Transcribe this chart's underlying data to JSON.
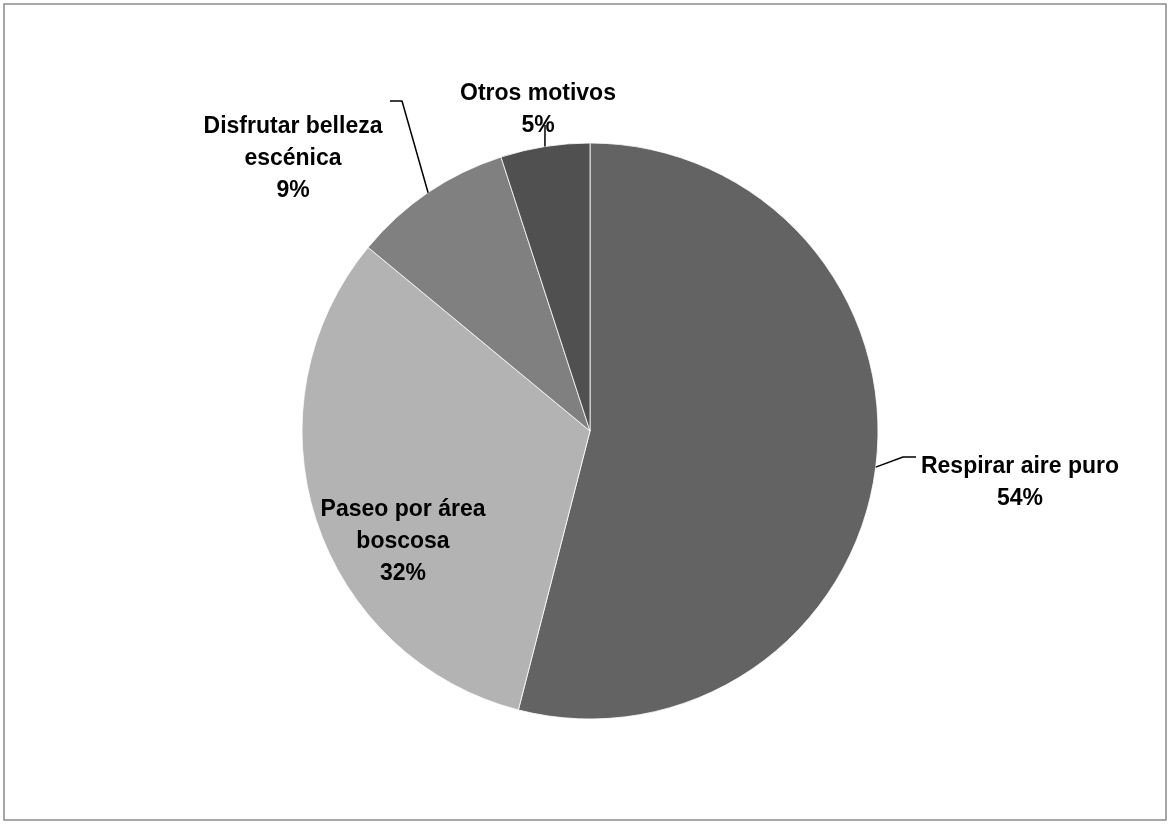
{
  "chart_data": {
    "type": "pie",
    "categories": [
      "Respirar aire puro",
      "Paseo por área boscosa",
      "Disfrutar belleza escénica",
      "Otros motivos"
    ],
    "values": [
      54,
      32,
      9,
      5
    ],
    "colors": [
      "#636363",
      "#b3b3b3",
      "#808080",
      "#505050"
    ],
    "value_labels": [
      "54%",
      "32%",
      "9%",
      "5%"
    ]
  }
}
